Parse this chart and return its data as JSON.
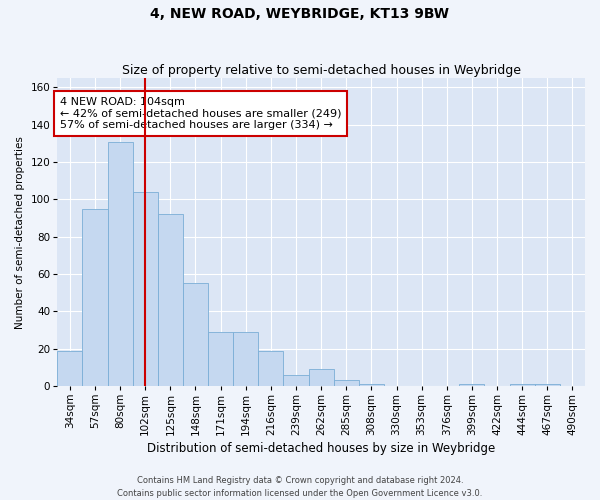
{
  "title": "4, NEW ROAD, WEYBRIDGE, KT13 9BW",
  "subtitle": "Size of property relative to semi-detached houses in Weybridge",
  "xlabel": "Distribution of semi-detached houses by size in Weybridge",
  "ylabel": "Number of semi-detached properties",
  "categories": [
    "34sqm",
    "57sqm",
    "80sqm",
    "102sqm",
    "125sqm",
    "148sqm",
    "171sqm",
    "194sqm",
    "216sqm",
    "239sqm",
    "262sqm",
    "285sqm",
    "308sqm",
    "330sqm",
    "353sqm",
    "376sqm",
    "399sqm",
    "422sqm",
    "444sqm",
    "467sqm",
    "490sqm"
  ],
  "values": [
    19,
    95,
    131,
    104,
    92,
    55,
    29,
    29,
    19,
    6,
    9,
    3,
    1,
    0,
    0,
    0,
    1,
    0,
    1,
    1,
    0
  ],
  "bar_color": "#c5d8f0",
  "bar_edge_color": "#7aaed6",
  "background_color": "#dce6f5",
  "grid_color": "#ffffff",
  "vline_x": 3,
  "vline_color": "#cc0000",
  "annotation_text": "4 NEW ROAD: 104sqm\n← 42% of semi-detached houses are smaller (249)\n57% of semi-detached houses are larger (334) →",
  "annotation_box_color": "#ffffff",
  "annotation_box_edge": "#cc0000",
  "ylim": [
    0,
    165
  ],
  "yticks": [
    0,
    20,
    40,
    60,
    80,
    100,
    120,
    140,
    160
  ],
  "footer": "Contains HM Land Registry data © Crown copyright and database right 2024.\nContains public sector information licensed under the Open Government Licence v3.0.",
  "title_fontsize": 10,
  "subtitle_fontsize": 9,
  "xlabel_fontsize": 8.5,
  "ylabel_fontsize": 7.5,
  "tick_fontsize": 7.5,
  "annotation_fontsize": 8,
  "footer_fontsize": 6
}
